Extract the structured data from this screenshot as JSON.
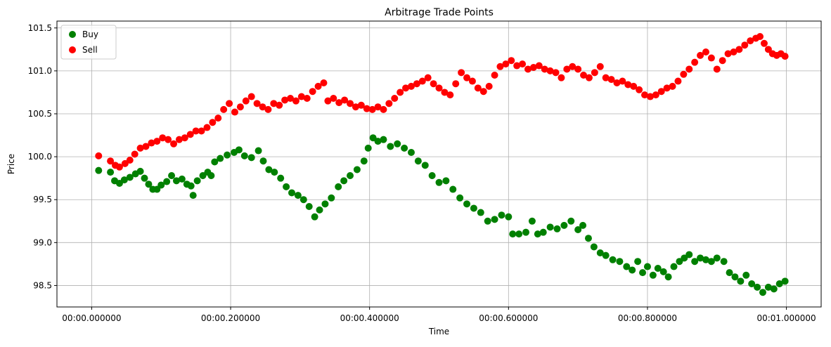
{
  "chart_data": {
    "type": "scatter",
    "title": "Arbitrage Trade Points",
    "xlabel": "Time",
    "ylabel": "Price",
    "xlim": [
      -0.05,
      1.05
    ],
    "ylim": [
      98.25,
      101.58
    ],
    "grid": true,
    "legend_position": "top-left",
    "x_ticks": [
      0.0,
      0.2,
      0.4,
      0.6,
      0.8,
      1.0
    ],
    "x_tick_labels": [
      "00:00.000000",
      "00:00.200000",
      "00:00.400000",
      "00:00.600000",
      "00:00.800000",
      "00:01.000000"
    ],
    "y_ticks": [
      98.5,
      99.0,
      99.5,
      100.0,
      100.5,
      101.0,
      101.5
    ],
    "y_tick_labels": [
      "98.5",
      "99.0",
      "99.5",
      "100.0",
      "100.5",
      "101.0",
      "101.5"
    ],
    "series": [
      {
        "name": "Buy",
        "color": "#008000",
        "points": [
          [
            0.01,
            99.84
          ],
          [
            0.027,
            99.82
          ],
          [
            0.033,
            99.72
          ],
          [
            0.04,
            99.69
          ],
          [
            0.047,
            99.73
          ],
          [
            0.055,
            99.76
          ],
          [
            0.063,
            99.8
          ],
          [
            0.07,
            99.83
          ],
          [
            0.076,
            99.75
          ],
          [
            0.082,
            99.68
          ],
          [
            0.088,
            99.62
          ],
          [
            0.094,
            99.62
          ],
          [
            0.1,
            99.67
          ],
          [
            0.108,
            99.71
          ],
          [
            0.115,
            99.78
          ],
          [
            0.122,
            99.72
          ],
          [
            0.13,
            99.74
          ],
          [
            0.137,
            99.68
          ],
          [
            0.143,
            99.66
          ],
          [
            0.146,
            99.55
          ],
          [
            0.152,
            99.72
          ],
          [
            0.16,
            99.78
          ],
          [
            0.167,
            99.82
          ],
          [
            0.172,
            99.78
          ],
          [
            0.177,
            99.94
          ],
          [
            0.185,
            99.98
          ],
          [
            0.195,
            100.02
          ],
          [
            0.205,
            100.05
          ],
          [
            0.212,
            100.08
          ],
          [
            0.22,
            100.01
          ],
          [
            0.23,
            99.99
          ],
          [
            0.24,
            100.07
          ],
          [
            0.247,
            99.95
          ],
          [
            0.255,
            99.85
          ],
          [
            0.263,
            99.82
          ],
          [
            0.272,
            99.75
          ],
          [
            0.28,
            99.65
          ],
          [
            0.288,
            99.58
          ],
          [
            0.297,
            99.55
          ],
          [
            0.305,
            99.5
          ],
          [
            0.313,
            99.42
          ],
          [
            0.321,
            99.3
          ],
          [
            0.328,
            99.38
          ],
          [
            0.336,
            99.45
          ],
          [
            0.345,
            99.52
          ],
          [
            0.355,
            99.65
          ],
          [
            0.363,
            99.72
          ],
          [
            0.372,
            99.78
          ],
          [
            0.382,
            99.85
          ],
          [
            0.392,
            99.95
          ],
          [
            0.398,
            100.1
          ],
          [
            0.405,
            100.22
          ],
          [
            0.412,
            100.18
          ],
          [
            0.42,
            100.2
          ],
          [
            0.43,
            100.12
          ],
          [
            0.44,
            100.15
          ],
          [
            0.45,
            100.1
          ],
          [
            0.46,
            100.05
          ],
          [
            0.47,
            99.95
          ],
          [
            0.48,
            99.9
          ],
          [
            0.49,
            99.78
          ],
          [
            0.5,
            99.7
          ],
          [
            0.51,
            99.72
          ],
          [
            0.52,
            99.62
          ],
          [
            0.53,
            99.52
          ],
          [
            0.54,
            99.45
          ],
          [
            0.55,
            99.4
          ],
          [
            0.56,
            99.35
          ],
          [
            0.57,
            99.25
          ],
          [
            0.58,
            99.27
          ],
          [
            0.59,
            99.32
          ],
          [
            0.6,
            99.3
          ],
          [
            0.606,
            99.1
          ],
          [
            0.615,
            99.1
          ],
          [
            0.625,
            99.12
          ],
          [
            0.634,
            99.25
          ],
          [
            0.642,
            99.1
          ],
          [
            0.65,
            99.12
          ],
          [
            0.66,
            99.18
          ],
          [
            0.67,
            99.16
          ],
          [
            0.68,
            99.2
          ],
          [
            0.69,
            99.25
          ],
          [
            0.7,
            99.15
          ],
          [
            0.707,
            99.2
          ],
          [
            0.715,
            99.05
          ],
          [
            0.723,
            98.95
          ],
          [
            0.732,
            98.88
          ],
          [
            0.74,
            98.85
          ],
          [
            0.75,
            98.8
          ],
          [
            0.76,
            98.78
          ],
          [
            0.77,
            98.72
          ],
          [
            0.778,
            98.68
          ],
          [
            0.786,
            98.78
          ],
          [
            0.793,
            98.65
          ],
          [
            0.8,
            98.72
          ],
          [
            0.808,
            98.62
          ],
          [
            0.815,
            98.7
          ],
          [
            0.823,
            98.66
          ],
          [
            0.83,
            98.6
          ],
          [
            0.838,
            98.72
          ],
          [
            0.846,
            98.78
          ],
          [
            0.853,
            98.82
          ],
          [
            0.86,
            98.86
          ],
          [
            0.868,
            98.78
          ],
          [
            0.876,
            98.82
          ],
          [
            0.884,
            98.8
          ],
          [
            0.892,
            98.78
          ],
          [
            0.9,
            98.82
          ],
          [
            0.91,
            98.78
          ],
          [
            0.918,
            98.65
          ],
          [
            0.926,
            98.6
          ],
          [
            0.934,
            98.55
          ],
          [
            0.942,
            98.62
          ],
          [
            0.95,
            98.52
          ],
          [
            0.958,
            98.48
          ],
          [
            0.966,
            98.42
          ],
          [
            0.974,
            98.48
          ],
          [
            0.982,
            98.46
          ],
          [
            0.99,
            98.52
          ],
          [
            0.998,
            98.55
          ]
        ]
      },
      {
        "name": "Sell",
        "color": "#ff0000",
        "points": [
          [
            0.01,
            100.01
          ],
          [
            0.027,
            99.95
          ],
          [
            0.034,
            99.9
          ],
          [
            0.04,
            99.88
          ],
          [
            0.048,
            99.92
          ],
          [
            0.055,
            99.96
          ],
          [
            0.062,
            100.03
          ],
          [
            0.07,
            100.1
          ],
          [
            0.078,
            100.12
          ],
          [
            0.086,
            100.16
          ],
          [
            0.094,
            100.18
          ],
          [
            0.102,
            100.22
          ],
          [
            0.11,
            100.2
          ],
          [
            0.118,
            100.15
          ],
          [
            0.126,
            100.2
          ],
          [
            0.134,
            100.22
          ],
          [
            0.142,
            100.26
          ],
          [
            0.15,
            100.3
          ],
          [
            0.158,
            100.3
          ],
          [
            0.166,
            100.34
          ],
          [
            0.174,
            100.4
          ],
          [
            0.182,
            100.45
          ],
          [
            0.19,
            100.55
          ],
          [
            0.198,
            100.62
          ],
          [
            0.206,
            100.52
          ],
          [
            0.214,
            100.58
          ],
          [
            0.222,
            100.65
          ],
          [
            0.23,
            100.7
          ],
          [
            0.238,
            100.62
          ],
          [
            0.246,
            100.58
          ],
          [
            0.254,
            100.55
          ],
          [
            0.262,
            100.62
          ],
          [
            0.27,
            100.6
          ],
          [
            0.278,
            100.66
          ],
          [
            0.286,
            100.68
          ],
          [
            0.294,
            100.65
          ],
          [
            0.302,
            100.7
          ],
          [
            0.31,
            100.68
          ],
          [
            0.318,
            100.76
          ],
          [
            0.326,
            100.82
          ],
          [
            0.334,
            100.86
          ],
          [
            0.34,
            100.65
          ],
          [
            0.348,
            100.68
          ],
          [
            0.356,
            100.63
          ],
          [
            0.364,
            100.66
          ],
          [
            0.372,
            100.62
          ],
          [
            0.38,
            100.58
          ],
          [
            0.388,
            100.6
          ],
          [
            0.396,
            100.56
          ],
          [
            0.404,
            100.55
          ],
          [
            0.412,
            100.58
          ],
          [
            0.42,
            100.55
          ],
          [
            0.428,
            100.62
          ],
          [
            0.436,
            100.68
          ],
          [
            0.444,
            100.75
          ],
          [
            0.452,
            100.8
          ],
          [
            0.46,
            100.82
          ],
          [
            0.468,
            100.85
          ],
          [
            0.476,
            100.88
          ],
          [
            0.484,
            100.92
          ],
          [
            0.492,
            100.85
          ],
          [
            0.5,
            100.8
          ],
          [
            0.508,
            100.75
          ],
          [
            0.516,
            100.72
          ],
          [
            0.524,
            100.85
          ],
          [
            0.532,
            100.98
          ],
          [
            0.54,
            100.92
          ],
          [
            0.548,
            100.88
          ],
          [
            0.556,
            100.8
          ],
          [
            0.564,
            100.76
          ],
          [
            0.572,
            100.82
          ],
          [
            0.58,
            100.95
          ],
          [
            0.588,
            101.05
          ],
          [
            0.596,
            101.08
          ],
          [
            0.604,
            101.12
          ],
          [
            0.612,
            101.06
          ],
          [
            0.62,
            101.08
          ],
          [
            0.628,
            101.02
          ],
          [
            0.636,
            101.04
          ],
          [
            0.644,
            101.06
          ],
          [
            0.652,
            101.02
          ],
          [
            0.66,
            101.0
          ],
          [
            0.668,
            100.98
          ],
          [
            0.676,
            100.92
          ],
          [
            0.684,
            101.02
          ],
          [
            0.692,
            101.05
          ],
          [
            0.7,
            101.02
          ],
          [
            0.708,
            100.95
          ],
          [
            0.716,
            100.92
          ],
          [
            0.724,
            100.98
          ],
          [
            0.732,
            101.05
          ],
          [
            0.74,
            100.92
          ],
          [
            0.748,
            100.9
          ],
          [
            0.756,
            100.86
          ],
          [
            0.764,
            100.88
          ],
          [
            0.772,
            100.84
          ],
          [
            0.78,
            100.82
          ],
          [
            0.788,
            100.78
          ],
          [
            0.796,
            100.72
          ],
          [
            0.804,
            100.7
          ],
          [
            0.812,
            100.72
          ],
          [
            0.82,
            100.76
          ],
          [
            0.828,
            100.8
          ],
          [
            0.836,
            100.82
          ],
          [
            0.844,
            100.88
          ],
          [
            0.852,
            100.96
          ],
          [
            0.86,
            101.02
          ],
          [
            0.868,
            101.1
          ],
          [
            0.876,
            101.18
          ],
          [
            0.884,
            101.22
          ],
          [
            0.892,
            101.15
          ],
          [
            0.9,
            101.02
          ],
          [
            0.908,
            101.12
          ],
          [
            0.916,
            101.2
          ],
          [
            0.924,
            101.22
          ],
          [
            0.932,
            101.25
          ],
          [
            0.94,
            101.3
          ],
          [
            0.948,
            101.35
          ],
          [
            0.956,
            101.38
          ],
          [
            0.962,
            101.4
          ],
          [
            0.968,
            101.32
          ],
          [
            0.974,
            101.25
          ],
          [
            0.98,
            101.2
          ],
          [
            0.986,
            101.18
          ],
          [
            0.992,
            101.2
          ],
          [
            0.998,
            101.17
          ]
        ]
      }
    ]
  }
}
